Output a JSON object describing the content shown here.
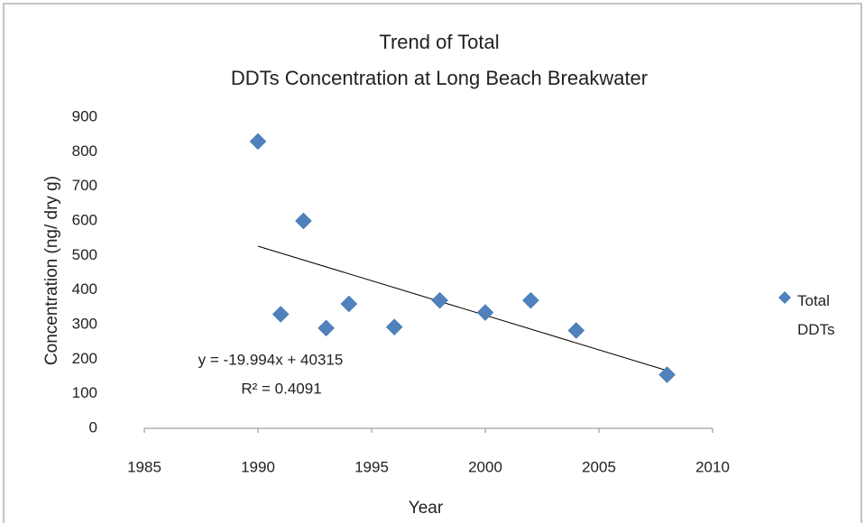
{
  "chart_data": {
    "type": "scatter",
    "title": [
      "Trend of Total",
      "DDTs Concentration at Long Beach Breakwater"
    ],
    "x_label": "Year",
    "y_label": "Concentration (ng/ dry g)",
    "series": [
      {
        "name": "Total DDTs",
        "color": "#4f81bd",
        "x": [
          1990,
          1991,
          1992,
          1993,
          1994,
          1996,
          1998,
          2000,
          2002,
          2004,
          2008
        ],
        "values": [
          830,
          330,
          600,
          290,
          360,
          293,
          370,
          335,
          370,
          283,
          155
        ]
      }
    ],
    "trendline": {
      "equation": "y = -19.994x + 40315",
      "r2": "R² = 0.4091",
      "slope": -19.994,
      "intercept": 40315,
      "color": "#000000"
    },
    "xlim": [
      1985,
      2010
    ],
    "xticks": [
      1985,
      1990,
      1995,
      2000,
      2005,
      2010
    ],
    "ylim": [
      0,
      900
    ],
    "yticks": [
      0,
      100,
      200,
      300,
      400,
      500,
      600,
      700,
      800,
      900
    ],
    "grid": false,
    "legend": "right"
  }
}
